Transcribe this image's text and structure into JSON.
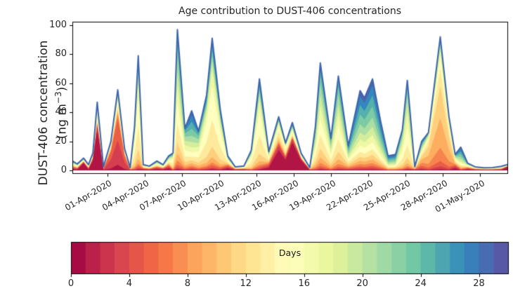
{
  "title": "Age contribution to DUST-406 concentrations",
  "y_axis": {
    "label_line1": "DUST-406 concentration",
    "unit_prefix": "(ng m",
    "unit_exp": "−3",
    "unit_suffix": ")",
    "ticks": [
      0,
      20,
      40,
      60,
      80,
      100
    ]
  },
  "x_axis": {
    "tick_days": [
      0,
      3,
      6,
      9,
      12,
      15,
      18,
      21,
      24,
      27,
      30
    ],
    "tick_labels": [
      "01-Apr-2020",
      "04-Apr-2020",
      "07-Apr-2020",
      "10-Apr-2020",
      "13-Apr-2020",
      "16-Apr-2020",
      "19-Apr-2020",
      "22-Apr-2020",
      "25-Apr-2020",
      "28-Apr-2020",
      "01-May-2020"
    ]
  },
  "colorbar": {
    "label": "Days",
    "min": 0,
    "max": 30,
    "levels": 30,
    "ticks": [
      0,
      4,
      8,
      12,
      16,
      20,
      24,
      28
    ]
  },
  "chart_data": {
    "type": "area",
    "stacked": true,
    "title": "Age contribution to DUST-406 concentrations",
    "xlabel": "",
    "ylabel": "DUST-406 concentration (ng m⁻³)",
    "x_unit": "days since 01-Apr-2020 00:00",
    "xlim": [
      -2.8,
      32.2
    ],
    "ylim": [
      -1.9,
      102.4
    ],
    "grid": false,
    "age_bin_count": 15,
    "age_bin_width_days": 2,
    "envelope_line_color": "#3f66ad",
    "x": [
      -2.8,
      -2.4,
      -1.9,
      -1.5,
      -1.15,
      -0.8,
      -0.3,
      0.3,
      0.85,
      1.4,
      1.85,
      2.2,
      2.5,
      2.9,
      3.4,
      4.0,
      4.5,
      4.95,
      5.3,
      5.65,
      6.25,
      6.8,
      7.35,
      8.0,
      8.45,
      9.1,
      9.7,
      10.3,
      11.0,
      11.6,
      12.25,
      13.0,
      13.8,
      14.35,
      14.9,
      15.6,
      16.3,
      16.75,
      17.15,
      18.0,
      18.6,
      19.4,
      20.35,
      20.7,
      21.35,
      22.0,
      22.6,
      23.2,
      23.75,
      24.15,
      24.75,
      25.3,
      25.85,
      26.8,
      27.5,
      28.0,
      28.45,
      29.0,
      29.6,
      30.3,
      31.0,
      31.7,
      32.2
    ],
    "total": [
      6.5,
      4.5,
      8.5,
      4.0,
      12,
      47,
      2.5,
      20,
      55.5,
      15,
      2,
      30,
      79,
      4,
      3,
      6.5,
      4,
      10,
      12,
      97,
      29,
      41,
      27,
      52,
      91,
      42,
      10,
      2.5,
      3,
      14,
      63,
      13,
      37,
      19,
      33,
      12,
      2,
      30,
      74,
      22,
      65,
      17,
      55,
      50,
      63,
      34,
      10,
      11,
      28,
      62,
      2.5,
      20,
      26,
      92,
      37,
      11,
      16,
      5,
      2.5,
      1.8,
      2,
      2.8,
      4
    ],
    "profile": [
      "mix",
      "mix",
      "fresh",
      "mix",
      "fresh",
      "fresh",
      "mix",
      "fresh2",
      "fresh2",
      "fresh2",
      "mix",
      "yellow",
      "yellow",
      "mix",
      "mix",
      "mix",
      "mix",
      "mix",
      "yellow",
      "green",
      "green",
      "blue",
      "green",
      "yellow",
      "yellow",
      "yellow",
      "mix",
      "mix",
      "mix",
      "yellow",
      "yellow",
      "mix",
      "freshmid",
      "freshmid",
      "fresh",
      "fresh",
      "mix",
      "green",
      "green",
      "green",
      "green",
      "bluemix",
      "blue",
      "blue",
      "blue",
      "blue",
      "blue",
      "blue",
      "yellowgreen",
      "yellowgreen",
      "mix",
      "orangeblue",
      "cream",
      "cream",
      "cream",
      "mix",
      "blue",
      "mix",
      "mix",
      "mix",
      "mix",
      "mix",
      "fresh"
    ],
    "profiles": {
      "fresh": [
        0.58,
        0.08,
        0.02,
        0.01,
        0.01,
        0.02,
        0.05,
        0.06,
        0.04,
        0.02,
        0.02,
        0.02,
        0.02,
        0.03,
        0.02
      ],
      "freshmid": [
        0.38,
        0.08,
        0.04,
        0.03,
        0.03,
        0.06,
        0.11,
        0.1,
        0.05,
        0.03,
        0.02,
        0.02,
        0.01,
        0.02,
        0.02
      ],
      "fresh2": [
        0.07,
        0.3,
        0.27,
        0.06,
        0.03,
        0.03,
        0.05,
        0.06,
        0.03,
        0.02,
        0.02,
        0.01,
        0.01,
        0.02,
        0.02
      ],
      "yellow": [
        0.01,
        0.01,
        0.02,
        0.02,
        0.04,
        0.08,
        0.2,
        0.26,
        0.12,
        0.06,
        0.04,
        0.04,
        0.03,
        0.04,
        0.03
      ],
      "yellowgreen": [
        0.01,
        0.01,
        0.01,
        0.02,
        0.03,
        0.06,
        0.14,
        0.2,
        0.16,
        0.12,
        0.09,
        0.06,
        0.04,
        0.03,
        0.02
      ],
      "green": [
        0.01,
        0.01,
        0.02,
        0.03,
        0.05,
        0.08,
        0.13,
        0.15,
        0.12,
        0.1,
        0.1,
        0.08,
        0.06,
        0.04,
        0.02
      ],
      "blue": [
        0.01,
        0.02,
        0.02,
        0.03,
        0.04,
        0.05,
        0.06,
        0.08,
        0.08,
        0.09,
        0.1,
        0.12,
        0.12,
        0.11,
        0.07
      ],
      "bluemix": [
        0.02,
        0.03,
        0.04,
        0.04,
        0.05,
        0.07,
        0.09,
        0.1,
        0.09,
        0.09,
        0.09,
        0.09,
        0.08,
        0.07,
        0.05
      ],
      "cream": [
        0.01,
        0.02,
        0.04,
        0.1,
        0.22,
        0.24,
        0.14,
        0.08,
        0.05,
        0.03,
        0.02,
        0.02,
        0.01,
        0.01,
        0.01
      ],
      "orangeblue": [
        0.03,
        0.05,
        0.08,
        0.1,
        0.12,
        0.1,
        0.08,
        0.07,
        0.07,
        0.07,
        0.06,
        0.06,
        0.05,
        0.04,
        0.02
      ],
      "mix": [
        0.15,
        0.1,
        0.08,
        0.06,
        0.05,
        0.06,
        0.08,
        0.1,
        0.08,
        0.06,
        0.05,
        0.04,
        0.04,
        0.03,
        0.02
      ]
    },
    "colormap": {
      "name": "Spectral",
      "levels": 30,
      "anchors": [
        "#9e0142",
        "#d53e4f",
        "#f46d43",
        "#fdae61",
        "#fee08b",
        "#ffffbf",
        "#e6f598",
        "#abdda4",
        "#66c2a5",
        "#3288bd",
        "#5e4fa2"
      ]
    }
  }
}
